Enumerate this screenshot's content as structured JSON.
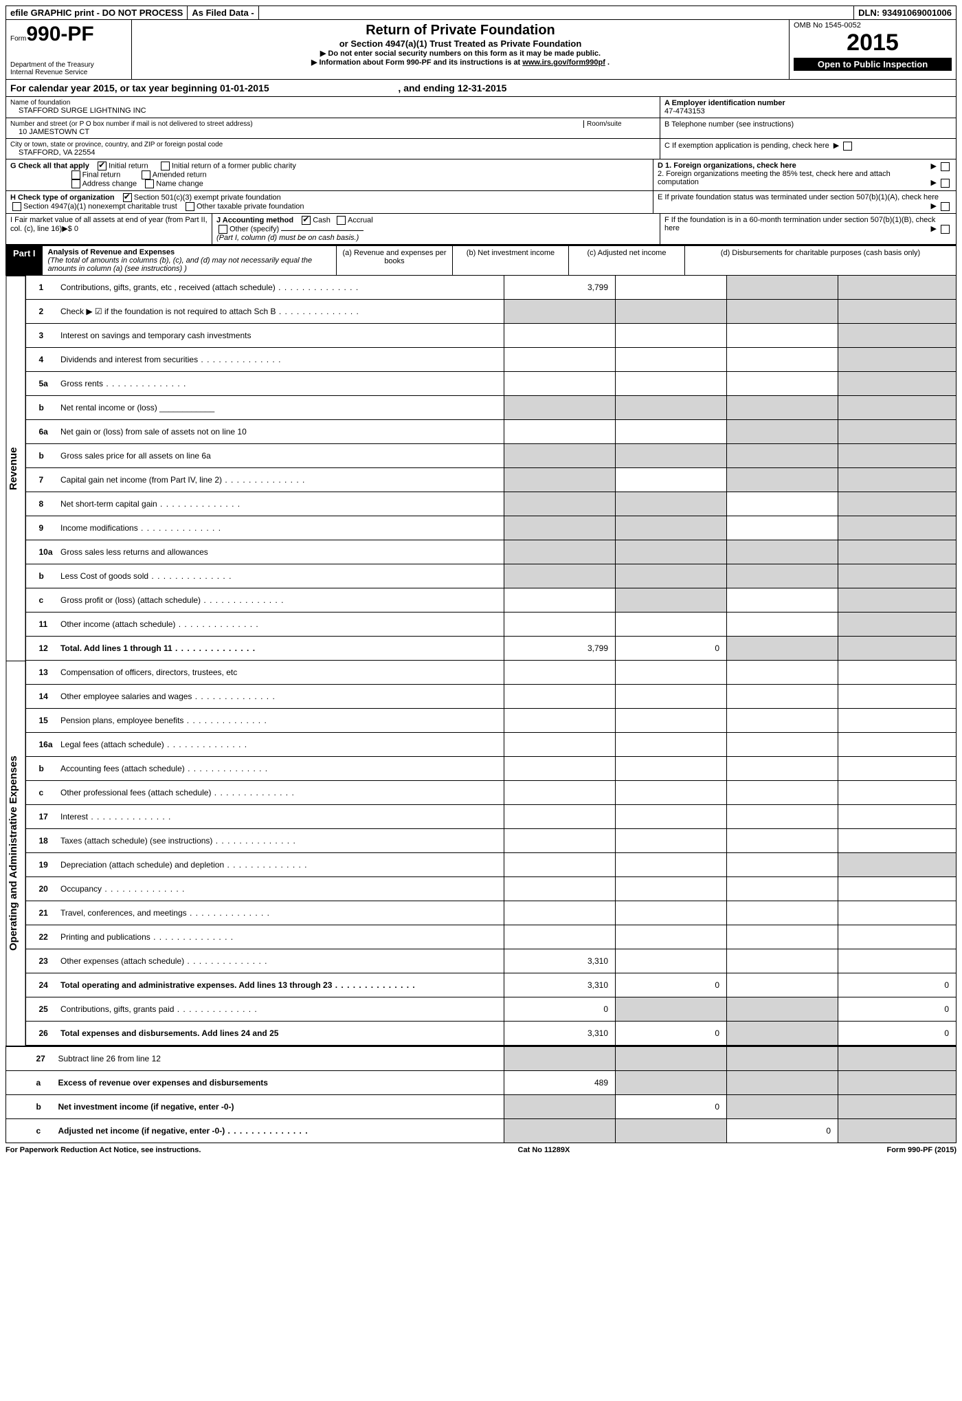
{
  "topbar": {
    "efile": "efile GRAPHIC print - DO NOT PROCESS",
    "asfiled": "As Filed Data -",
    "dln_label": "DLN:",
    "dln": "93491069001006"
  },
  "header": {
    "form_prefix": "Form",
    "form_number": "990-PF",
    "dept": "Department of the Treasury",
    "irs": "Internal Revenue Service",
    "title": "Return of Private Foundation",
    "subtitle": "or Section 4947(a)(1) Trust Treated as Private Foundation",
    "note1": "▶ Do not enter social security numbers on this form as it may be made public.",
    "note2": "▶ Information about Form 990-PF and its instructions is at ",
    "note2_link": "www.irs.gov/form990pf",
    "omb": "OMB No 1545-0052",
    "year": "2015",
    "open": "Open to Public Inspection"
  },
  "calendar": {
    "text1": "For calendar year 2015, or tax year beginning ",
    "begin": "01-01-2015",
    "text2": ", and ending ",
    "end": "12-31-2015"
  },
  "foundation": {
    "name_label": "Name of foundation",
    "name": "STAFFORD SURGE LIGHTNING INC",
    "ein_label": "A Employer identification number",
    "ein": "47-4743153",
    "addr_label": "Number and street (or P O box number if mail is not delivered to street address)",
    "room_label": "Room/suite",
    "addr": "10 JAMESTOWN CT",
    "phone_label": "B Telephone number (see instructions)",
    "city_label": "City or town, state or province, country, and ZIP or foreign postal code",
    "city": "STAFFORD, VA  22554",
    "c_label": "C If exemption application is pending, check here"
  },
  "check_g": {
    "label": "G Check all that apply",
    "opts": [
      "Initial return",
      "Initial return of a former public charity",
      "Final return",
      "Amended return",
      "Address change",
      "Name change"
    ]
  },
  "d_labels": {
    "d1": "D 1. Foreign organizations, check here",
    "d2": "2. Foreign organizations meeting the 85% test, check here and attach computation",
    "e": "E If private foundation status was terminated under section 507(b)(1)(A), check here",
    "f": "F If the foundation is in a 60-month termination under section 507(b)(1)(B), check here"
  },
  "check_h": {
    "label": "H Check type of organization",
    "opt1": "Section 501(c)(3) exempt private foundation",
    "opt2": "Section 4947(a)(1) nonexempt charitable trust",
    "opt3": "Other taxable private foundation"
  },
  "i_label": "I Fair market value of all assets at end of year (from Part II, col. (c), line 16)▶$ 0",
  "j_label": "J Accounting method",
  "j_opts": [
    "Cash",
    "Accrual",
    "Other (specify)"
  ],
  "j_note": "(Part I, column (d) must be on cash basis.)",
  "part1": {
    "tab": "Part I",
    "title": "Analysis of Revenue and Expenses",
    "note": "(The total of amounts in columns (b), (c), and (d) may not necessarily equal the amounts in column (a) (see instructions) )",
    "cols": {
      "a": "(a) Revenue and expenses per books",
      "b": "(b) Net investment income",
      "c": "(c) Adjusted net income",
      "d": "(d) Disbursements for charitable purposes (cash basis only)"
    }
  },
  "revenue_side": "Revenue",
  "expense_side": "Operating and Administrative Expenses",
  "lines": {
    "1": {
      "n": "1",
      "t": "Contributions, gifts, grants, etc , received (attach schedule)",
      "a": "3,799"
    },
    "2": {
      "n": "2",
      "t": "Check ▶ ☑ if the foundation is not required to attach Sch B"
    },
    "3": {
      "n": "3",
      "t": "Interest on savings and temporary cash investments"
    },
    "4": {
      "n": "4",
      "t": "Dividends and interest from securities"
    },
    "5a": {
      "n": "5a",
      "t": "Gross rents"
    },
    "5b": {
      "n": "b",
      "t": "Net rental income or (loss) ____________"
    },
    "6a": {
      "n": "6a",
      "t": "Net gain or (loss) from sale of assets not on line 10"
    },
    "6b": {
      "n": "b",
      "t": "Gross sales price for all assets on line 6a"
    },
    "7": {
      "n": "7",
      "t": "Capital gain net income (from Part IV, line 2)"
    },
    "8": {
      "n": "8",
      "t": "Net short-term capital gain"
    },
    "9": {
      "n": "9",
      "t": "Income modifications"
    },
    "10a": {
      "n": "10a",
      "t": "Gross sales less returns and allowances"
    },
    "10b": {
      "n": "b",
      "t": "Less Cost of goods sold"
    },
    "10c": {
      "n": "c",
      "t": "Gross profit or (loss) (attach schedule)"
    },
    "11": {
      "n": "11",
      "t": "Other income (attach schedule)"
    },
    "12": {
      "n": "12",
      "t": "Total. Add lines 1 through 11",
      "a": "3,799",
      "b": "0"
    },
    "13": {
      "n": "13",
      "t": "Compensation of officers, directors, trustees, etc"
    },
    "14": {
      "n": "14",
      "t": "Other employee salaries and wages"
    },
    "15": {
      "n": "15",
      "t": "Pension plans, employee benefits"
    },
    "16a": {
      "n": "16a",
      "t": "Legal fees (attach schedule)"
    },
    "16b": {
      "n": "b",
      "t": "Accounting fees (attach schedule)"
    },
    "16c": {
      "n": "c",
      "t": "Other professional fees (attach schedule)"
    },
    "17": {
      "n": "17",
      "t": "Interest"
    },
    "18": {
      "n": "18",
      "t": "Taxes (attach schedule) (see instructions)"
    },
    "19": {
      "n": "19",
      "t": "Depreciation (attach schedule) and depletion"
    },
    "20": {
      "n": "20",
      "t": "Occupancy"
    },
    "21": {
      "n": "21",
      "t": "Travel, conferences, and meetings"
    },
    "22": {
      "n": "22",
      "t": "Printing and publications"
    },
    "23": {
      "n": "23",
      "t": "Other expenses (attach schedule)",
      "a": "3,310"
    },
    "24": {
      "n": "24",
      "t": "Total operating and administrative expenses. Add lines 13 through 23",
      "a": "3,310",
      "b": "0",
      "d": "0"
    },
    "25": {
      "n": "25",
      "t": "Contributions, gifts, grants paid",
      "a": "0",
      "d": "0"
    },
    "26": {
      "n": "26",
      "t": "Total expenses and disbursements. Add lines 24 and 25",
      "a": "3,310",
      "b": "0",
      "d": "0"
    },
    "27": {
      "n": "27",
      "t": "Subtract line 26 from line 12"
    },
    "27a": {
      "n": "a",
      "t": "Excess of revenue over expenses and disbursements",
      "a": "489"
    },
    "27b": {
      "n": "b",
      "t": "Net investment income (if negative, enter -0-)",
      "b": "0"
    },
    "27c": {
      "n": "c",
      "t": "Adjusted net income (if negative, enter -0-)",
      "c": "0"
    }
  },
  "footer": {
    "left": "For Paperwork Reduction Act Notice, see instructions.",
    "mid": "Cat No 11289X",
    "right": "Form 990-PF (2015)"
  }
}
